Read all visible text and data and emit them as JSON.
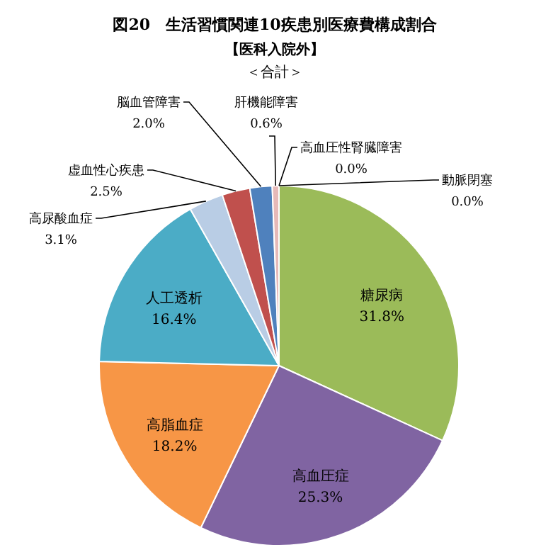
{
  "chart_data": {
    "type": "pie",
    "title": "図20　生活習慣関連10疾患別医療費構成割合",
    "subtitle": "【医科入院外】",
    "annotations": [
      "＜合計＞"
    ],
    "categories": [
      "糖尿病",
      "高血圧症",
      "高脂血症",
      "人工透析",
      "高尿酸血症",
      "虚血性心疾患",
      "脳血管障害",
      "肝機能障害",
      "高血圧性腎臓障害",
      "動脈閉塞"
    ],
    "values": [
      31.8,
      25.3,
      18.2,
      16.4,
      3.1,
      2.5,
      2.0,
      0.6,
      0.0,
      0.0
    ],
    "value_labels": [
      "31.8%",
      "25.3%",
      "18.2%",
      "16.4%",
      "3.1%",
      "2.5%",
      "2.0%",
      "0.6%",
      "0.0%",
      "0.0%"
    ],
    "colors": [
      "#9bbb59",
      "#8064a2",
      "#f79646",
      "#4bacc6",
      "#b9cde5",
      "#c0504d",
      "#4f81bd",
      "#e6b9b8",
      "#f2dcdb",
      "#d9d9d9"
    ]
  }
}
